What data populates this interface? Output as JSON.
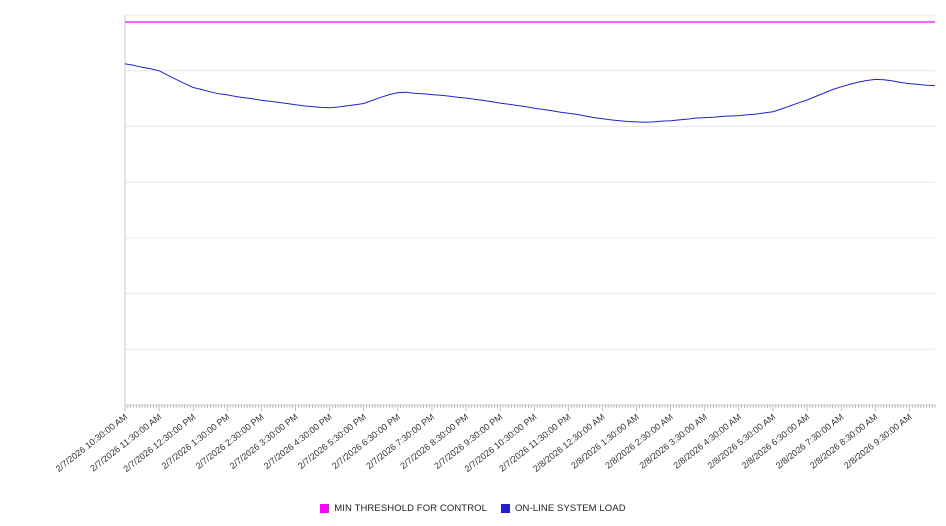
{
  "chart_data": {
    "type": "line",
    "title": "",
    "xlabel": "",
    "ylabel": "",
    "legend_position": "bottom",
    "grid": true,
    "grid_divisions": 7,
    "ylim": [
      0,
      100
    ],
    "x_total_hours": 23.75,
    "x_interval_minutes": 15,
    "x_minor_tick_minutes": 5,
    "x_tick_labels": [
      "2/7/2026 10:30:00 AM",
      "2/7/2026 11:30:00 AM",
      "2/7/2026 12:30:00 PM",
      "2/7/2026 1:30:00 PM",
      "2/7/2026 2:30:00 PM",
      "2/7/2026 3:30:00 PM",
      "2/7/2026 4:30:00 PM",
      "2/7/2026 5:30:00 PM",
      "2/7/2026 6:30:00 PM",
      "2/7/2026 7:30:00 PM",
      "2/7/2026 8:30:00 PM",
      "2/7/2026 9:30:00 PM",
      "2/7/2026 10:30:00 PM",
      "2/7/2026 11:30:00 PM",
      "2/8/2026 12:30:00 AM",
      "2/8/2026 1:30:00 AM",
      "2/8/2026 2:30:00 AM",
      "2/8/2026 3:30:00 AM",
      "2/8/2026 4:30:00 AM",
      "2/8/2026 5:30:00 AM",
      "2/8/2026 6:30:00 AM",
      "2/8/2026 7:30:00 AM",
      "2/8/2026 8:30:00 AM",
      "2/8/2026 9:30:00 AM"
    ],
    "series": [
      {
        "name": "MIN THRESHOLD FOR CONTROL",
        "type": "constant",
        "color": "#ff00ff",
        "value": 98.2
      },
      {
        "name": "ON-LINE SYSTEM LOAD",
        "type": "line",
        "color": "#2222cc",
        "values": [
          87.5,
          87.1,
          86.6,
          86.2,
          85.7,
          84.6,
          83.5,
          82.4,
          81.4,
          80.9,
          80.3,
          79.8,
          79.5,
          79.1,
          78.8,
          78.5,
          78.1,
          77.9,
          77.6,
          77.3,
          77.0,
          76.7,
          76.5,
          76.3,
          76.2,
          76.4,
          76.7,
          77.0,
          77.3,
          78.1,
          78.9,
          79.6,
          80.1,
          80.2,
          79.9,
          79.8,
          79.6,
          79.4,
          79.2,
          78.9,
          78.7,
          78.4,
          78.1,
          77.8,
          77.4,
          77.1,
          76.8,
          76.5,
          76.1,
          75.8,
          75.5,
          75.1,
          74.8,
          74.5,
          74.1,
          73.7,
          73.4,
          73.1,
          72.9,
          72.7,
          72.6,
          72.5,
          72.6,
          72.8,
          72.9,
          73.1,
          73.3,
          73.6,
          73.7,
          73.8,
          74.0,
          74.1,
          74.2,
          74.4,
          74.6,
          74.9,
          75.2,
          75.9,
          76.7,
          77.5,
          78.2,
          79.1,
          80.0,
          80.9,
          81.6,
          82.2,
          82.8,
          83.2,
          83.5,
          83.4,
          83.1,
          82.7,
          82.4,
          82.2,
          82.0,
          81.9
        ]
      }
    ],
    "colors": {
      "gridline": "#e6e6e6",
      "axis": "#c8c8c8",
      "tick": "#999999",
      "label_text": "#333333",
      "background": "#ffffff"
    }
  }
}
